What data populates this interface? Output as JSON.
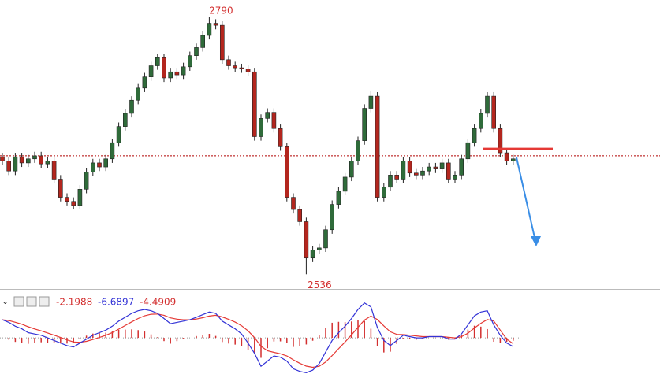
{
  "chart_data": {
    "type": "candlestick",
    "ylim": [
      2523,
      2807
    ],
    "up_color": "#2f6b3a",
    "down_color": "#b3261e",
    "open": [
      2652,
      2648,
      2638,
      2652,
      2646,
      2650,
      2653,
      2645,
      2648,
      2630,
      2612,
      2608,
      2604,
      2620,
      2637,
      2646,
      2642,
      2650,
      2666,
      2682,
      2695,
      2708,
      2720,
      2731,
      2742,
      2750,
      2730,
      2736,
      2733,
      2741,
      2752,
      2760,
      2772,
      2784,
      2782,
      2748,
      2742,
      2740,
      2739,
      2736,
      2672,
      2690,
      2696,
      2680,
      2662,
      2612,
      2600,
      2588,
      2552,
      2560,
      2562,
      2580,
      2605,
      2618,
      2632,
      2648,
      2668,
      2700,
      2712,
      2612,
      2622,
      2634,
      2630,
      2648,
      2636,
      2634,
      2638,
      2642,
      2640,
      2646,
      2630,
      2634,
      2650,
      2666,
      2680,
      2695,
      2712,
      2680,
      2656,
      2648
    ],
    "high": [
      2656,
      2652,
      2656,
      2656,
      2654,
      2657,
      2657,
      2652,
      2652,
      2634,
      2616,
      2612,
      2624,
      2641,
      2650,
      2650,
      2654,
      2670,
      2686,
      2699,
      2712,
      2724,
      2735,
      2746,
      2754,
      2754,
      2740,
      2740,
      2745,
      2756,
      2764,
      2776,
      2790,
      2788,
      2786,
      2752,
      2746,
      2744,
      2743,
      2740,
      2694,
      2700,
      2700,
      2684,
      2666,
      2616,
      2604,
      2592,
      2564,
      2566,
      2584,
      2609,
      2622,
      2636,
      2652,
      2672,
      2704,
      2717,
      2716,
      2626,
      2638,
      2638,
      2652,
      2652,
      2640,
      2642,
      2646,
      2646,
      2650,
      2650,
      2638,
      2654,
      2670,
      2684,
      2699,
      2716,
      2716,
      2684,
      2660,
      2654
    ],
    "low": [
      2644,
      2634,
      2634,
      2642,
      2642,
      2646,
      2641,
      2641,
      2626,
      2608,
      2604,
      2600,
      2600,
      2616,
      2633,
      2638,
      2638,
      2646,
      2662,
      2678,
      2691,
      2704,
      2716,
      2727,
      2738,
      2726,
      2726,
      2729,
      2729,
      2737,
      2748,
      2756,
      2768,
      2778,
      2744,
      2738,
      2736,
      2735,
      2732,
      2668,
      2668,
      2686,
      2676,
      2658,
      2608,
      2596,
      2584,
      2536,
      2548,
      2556,
      2558,
      2576,
      2601,
      2614,
      2628,
      2644,
      2664,
      2696,
      2608,
      2608,
      2618,
      2626,
      2626,
      2632,
      2630,
      2630,
      2634,
      2636,
      2636,
      2626,
      2626,
      2630,
      2646,
      2662,
      2676,
      2691,
      2676,
      2652,
      2644,
      2644
    ],
    "close": [
      2648,
      2638,
      2652,
      2646,
      2650,
      2653,
      2645,
      2648,
      2630,
      2612,
      2608,
      2604,
      2620,
      2637,
      2646,
      2642,
      2650,
      2666,
      2682,
      2695,
      2708,
      2720,
      2731,
      2742,
      2750,
      2730,
      2736,
      2733,
      2741,
      2752,
      2760,
      2772,
      2784,
      2782,
      2748,
      2742,
      2740,
      2739,
      2736,
      2672,
      2690,
      2696,
      2680,
      2662,
      2612,
      2600,
      2588,
      2552,
      2560,
      2562,
      2580,
      2605,
      2618,
      2632,
      2648,
      2668,
      2700,
      2712,
      2612,
      2622,
      2634,
      2630,
      2648,
      2636,
      2634,
      2638,
      2642,
      2640,
      2646,
      2630,
      2634,
      2650,
      2666,
      2680,
      2695,
      2712,
      2680,
      2656,
      2648,
      2650
    ],
    "level": 2653,
    "level_color": "#b00000",
    "resistance": 2660,
    "resistance_color": "#e53935",
    "macd": {
      "ylim": [
        -28,
        33
      ],
      "hist_color": "#d32f2f",
      "dif_color": "#3333d6",
      "dea_color": "#e53935",
      "hist": [
        0,
        -1.4,
        -3.1,
        -3.6,
        -4.6,
        -3.9,
        -3.4,
        -3.8,
        -4.1,
        -4.3,
        -4.4,
        -3.8,
        -0.6,
        1.7,
        3.3,
        3.7,
        4.0,
        4.9,
        6.2,
        6.4,
        6.6,
        6.0,
        4.9,
        2.7,
        0.5,
        -2.5,
        -4.5,
        -2.5,
        -1.0,
        0,
        1.4,
        2.4,
        3.1,
        1.5,
        -3.2,
        -4.4,
        -5.2,
        -6.4,
        -9.4,
        -12.2,
        -15.5,
        -8.0,
        -2.8,
        -2.7,
        -4.0,
        -7.0,
        -6.3,
        -5.1,
        -2.2,
        2.0,
        7.7,
        11.7,
        12.4,
        12.2,
        12.7,
        13.8,
        13.2,
        7.1,
        -6.2,
        -11.3,
        -10.7,
        -4.7,
        -0.5,
        -1.1,
        -1.5,
        -1.0,
        0,
        0,
        0,
        -1.4,
        -1.0,
        2.1,
        6.4,
        9.4,
        8.7,
        6.8,
        -3.0,
        -4.0,
        -3.0,
        -2.1988
      ],
      "dif": [
        14,
        12,
        9,
        7,
        4,
        3,
        2,
        0,
        -2,
        -4,
        -6,
        -7,
        -4,
        -1,
        2,
        4,
        6,
        9,
        13,
        16,
        19,
        21,
        22,
        21,
        19,
        15,
        11,
        12,
        13,
        14,
        16,
        18,
        20,
        19,
        13,
        10,
        7,
        3,
        -4,
        -12,
        -22,
        -18,
        -14,
        -15,
        -18,
        -24,
        -26,
        -27,
        -25,
        -20,
        -11,
        -2,
        4,
        9,
        15,
        22,
        27,
        24,
        8,
        -2,
        -6,
        -2,
        2,
        1,
        0,
        0,
        1,
        1,
        1,
        -1,
        -1,
        3,
        10,
        17,
        20,
        21,
        10,
        2,
        -4,
        -6.6897
      ],
      "dea": [
        14,
        13.4,
        12.1,
        10.6,
        8.6,
        6.9,
        5.4,
        3.8,
        2.1,
        0.3,
        -1.6,
        -3.2,
        -3.4,
        -2.7,
        -1.3,
        0.3,
        2.0,
        4.1,
        6.8,
        9.6,
        12.4,
        15.0,
        17.1,
        18.3,
        18.5,
        17.5,
        15.5,
        14.5,
        14.0,
        14.0,
        14.6,
        15.6,
        16.9,
        17.5,
        16.2,
        14.4,
        12.2,
        9.4,
        5.4,
        0.2,
        -6.5,
        -10.0,
        -11.2,
        -12.3,
        -14.0,
        -17.0,
        -19.7,
        -21.9,
        -22.8,
        -22.0,
        -18.7,
        -13.7,
        -8.4,
        -3.2,
        2.3,
        8.2,
        13.8,
        16.9,
        14.2,
        9.3,
        4.7,
        2.7,
        2.5,
        2.1,
        1.5,
        1.0,
        1.0,
        1.0,
        1.0,
        0.4,
        0.0,
        0.9,
        3.6,
        7.6,
        11.3,
        14.2,
        13.0,
        6.0,
        -1.0,
        -4.4909
      ]
    }
  }
}
